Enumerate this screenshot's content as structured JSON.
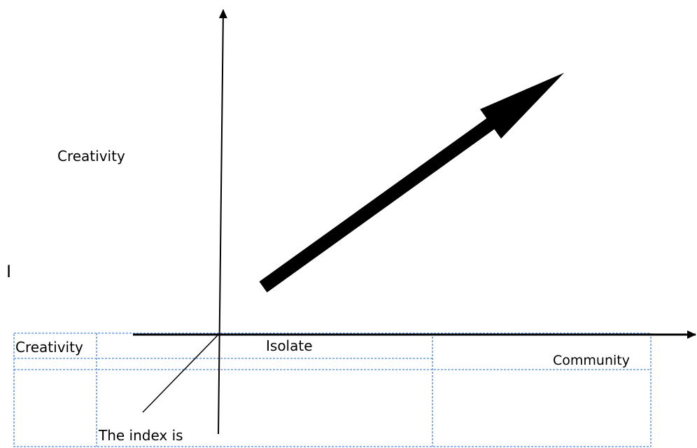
{
  "labels": {
    "y_axis": "Creativity",
    "cursor_mark": "I",
    "table_creativity": "Creativity",
    "table_isolate": "Isolate",
    "x_axis": "Community",
    "index_note": "The index is"
  },
  "colors": {
    "ink": "#000000",
    "table_border": "#4a86e8",
    "background": "#ffffff"
  }
}
